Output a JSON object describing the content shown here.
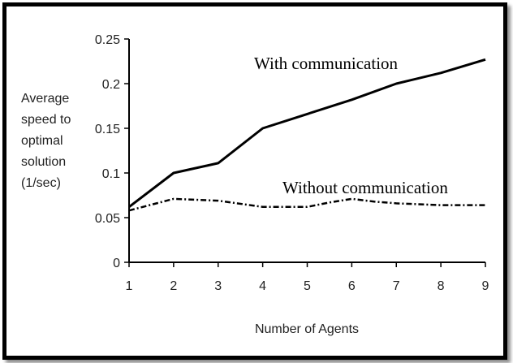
{
  "chart_data": {
    "type": "line",
    "title": "",
    "xlabel": "Number of Agents",
    "ylabel_lines": [
      "Average",
      "speed to",
      "optimal",
      "solution",
      "(1/sec)"
    ],
    "xlim": [
      1,
      9
    ],
    "ylim": [
      0,
      0.25
    ],
    "x_ticks": [
      "1",
      "2",
      "3",
      "4",
      "5",
      "6",
      "7",
      "8",
      "9"
    ],
    "y_ticks": [
      "0",
      "0.05",
      "0.1",
      "0.15",
      "0.2",
      "0.25"
    ],
    "grid": false,
    "legend": "none",
    "x": [
      1,
      2,
      3,
      4,
      5,
      6,
      7,
      8,
      9
    ],
    "series": [
      {
        "name": "With communication",
        "style": "solid",
        "color": "#000000",
        "values": [
          0.062,
          0.1,
          0.111,
          0.15,
          0.166,
          0.182,
          0.2,
          0.212,
          0.227
        ]
      },
      {
        "name": "Without communication",
        "style": "dashdot",
        "color": "#000000",
        "x": [
          1,
          2,
          3,
          4,
          5,
          5.5,
          6,
          6.5,
          7,
          8,
          9
        ],
        "values": [
          0.058,
          0.071,
          0.069,
          0.062,
          0.062,
          0.067,
          0.071,
          0.068,
          0.066,
          0.064,
          0.064
        ]
      }
    ]
  }
}
